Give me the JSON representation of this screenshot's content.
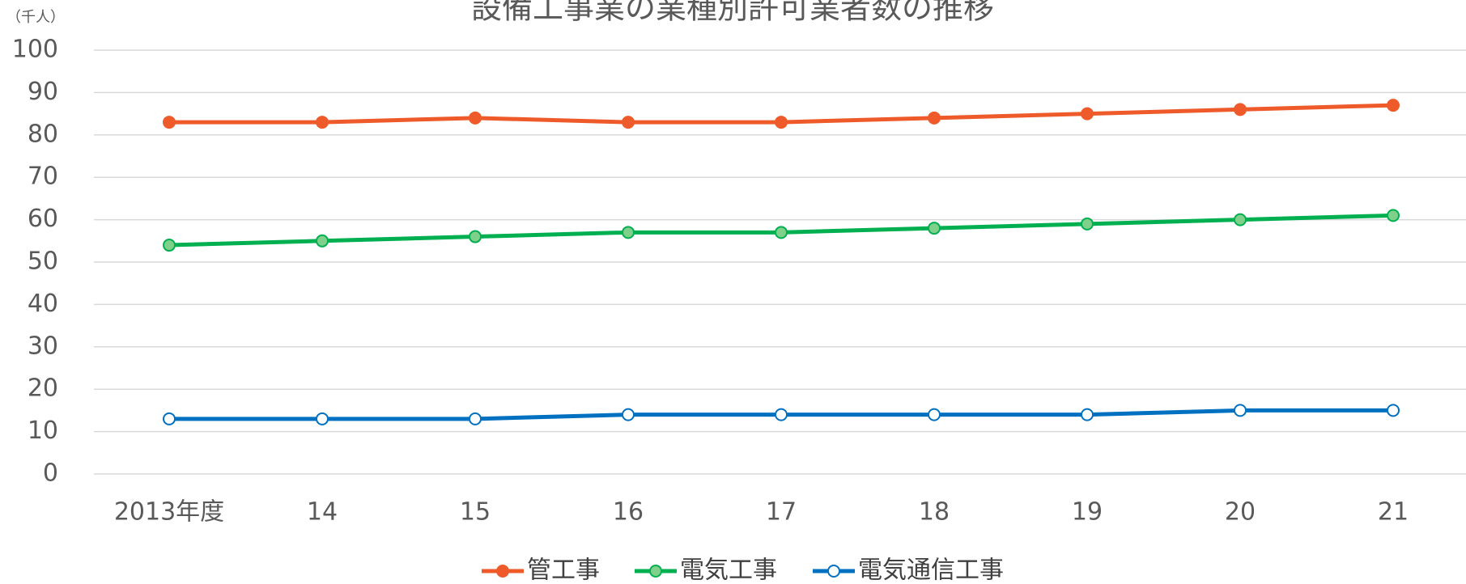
{
  "chart_data": {
    "type": "line",
    "title": "設備工事業の業種別許可業者数の推移",
    "y_unit": "（千人）",
    "categories": [
      "2013年度",
      "14",
      "15",
      "16",
      "17",
      "18",
      "19",
      "20",
      "21"
    ],
    "series": [
      {
        "name": "管工事",
        "color": "#ee5a2a",
        "marker_fill": "#ee5a2a",
        "values": [
          83,
          83,
          84,
          83,
          83,
          84,
          85,
          86,
          87
        ]
      },
      {
        "name": "電気工事",
        "color": "#00b050",
        "marker_fill": "#7fd08a",
        "values": [
          54,
          55,
          56,
          57,
          57,
          58,
          59,
          60,
          61
        ]
      },
      {
        "name": "電気通信工事",
        "color": "#0070c0",
        "marker_fill": "#ffffff",
        "values": [
          13,
          13,
          13,
          14,
          14,
          14,
          14,
          15,
          15
        ]
      }
    ],
    "ylim": [
      0,
      100
    ],
    "yticks": [
      0,
      10,
      20,
      30,
      40,
      50,
      60,
      70,
      80,
      90,
      100
    ],
    "grid": true,
    "legend": "bottom"
  }
}
